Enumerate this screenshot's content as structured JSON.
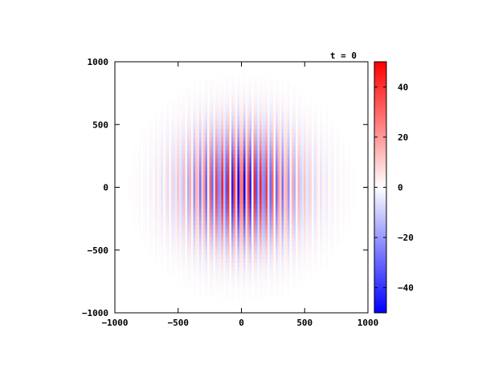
{
  "chart_data": {
    "type": "heatmap",
    "title": "t = 0",
    "xlabel": "",
    "ylabel": "",
    "xlim": [
      -1000,
      1000
    ],
    "ylim": [
      -1000,
      1000
    ],
    "x_ticks": [
      -1000,
      -500,
      0,
      500,
      1000
    ],
    "y_ticks": [
      -1000,
      -500,
      0,
      500,
      1000
    ],
    "x_tick_labels": [
      "−1000",
      "−500",
      "0",
      "500",
      "1000"
    ],
    "y_tick_labels": [
      "1000",
      "500",
      "0",
      "−500",
      "−1000"
    ],
    "colorbar": {
      "range": [
        -50,
        50
      ],
      "ticks": [
        40,
        20,
        0,
        -20,
        -40
      ],
      "tick_labels": [
        "40",
        "20",
        "0",
        "−20",
        "−40"
      ],
      "colors": {
        "low": "#0000ff",
        "mid": "#ffffff",
        "high": "#ff0000"
      }
    },
    "field": {
      "description_of_pattern": "vertical stripes modulated by a radial gaussian envelope",
      "amplitude": 50,
      "stripe_wavelength": 50,
      "envelope_radius": 420,
      "grid": false
    }
  }
}
